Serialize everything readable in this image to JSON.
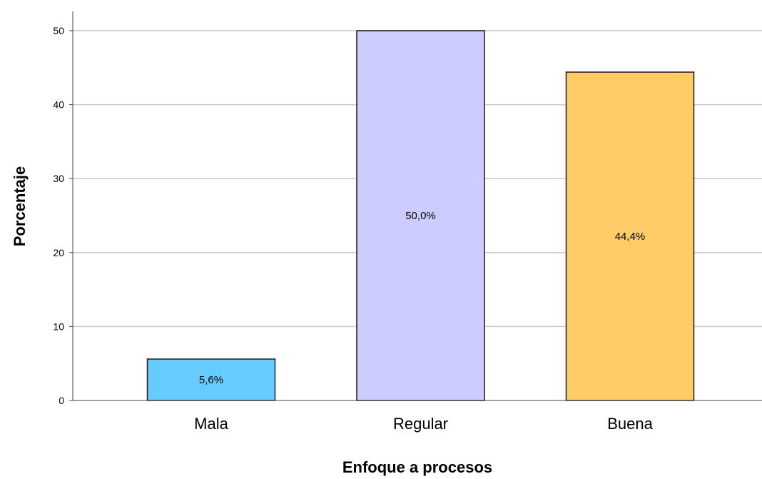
{
  "chart_data": {
    "type": "bar",
    "categories": [
      "Mala",
      "Regular",
      "Buena"
    ],
    "values": [
      5.6,
      50.0,
      44.4
    ],
    "data_labels": [
      "5,6%",
      "50,0%",
      "44,4%"
    ],
    "colors": [
      "#66ccff",
      "#ccccff",
      "#ffcc66"
    ],
    "xlabel": "Enfoque a procesos",
    "ylabel": "Porcentaje",
    "ylim": [
      0,
      50
    ],
    "yticks": [
      0,
      10,
      20,
      30,
      40,
      50
    ],
    "grid": true
  }
}
